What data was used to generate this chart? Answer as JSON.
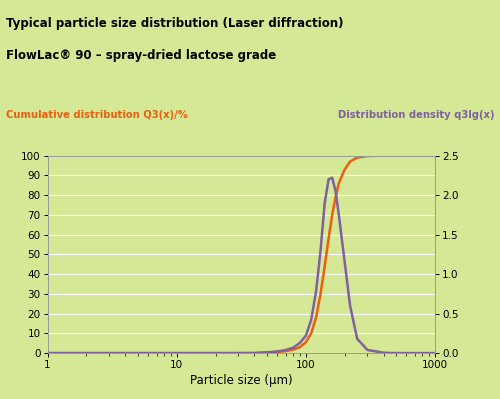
{
  "title_line1": "Typical particle size distribution (Laser diffraction)",
  "title_line2": "FlowLac® 90 – spray-dried lactose grade",
  "left_label": "Cumulative distribution Q3(x)/%",
  "right_label": "Distribution density q3lg(x)",
  "xlabel": "Particle size (µm)",
  "background_color": "#d4e896",
  "plot_bg_color": "#d4e896",
  "title_bg_color": "#cce08a",
  "orange_color": "#e86010",
  "purple_color": "#8060a0",
  "left_ylim": [
    0,
    100
  ],
  "right_ylim": [
    0,
    2.5
  ],
  "xlim": [
    1,
    1000
  ],
  "left_yticks": [
    0,
    10,
    20,
    30,
    40,
    50,
    60,
    70,
    80,
    90,
    100
  ],
  "right_yticks": [
    0,
    0.5,
    1.0,
    1.5,
    2.0,
    2.5
  ],
  "grid_color": "#ffffff",
  "cumulative_x": [
    1,
    2,
    5,
    10,
    20,
    30,
    40,
    50,
    60,
    70,
    80,
    90,
    100,
    110,
    120,
    130,
    140,
    150,
    160,
    170,
    180,
    200,
    220,
    250,
    300,
    400,
    500,
    700,
    1000
  ],
  "cumulative_y": [
    0,
    0,
    0,
    0,
    0,
    0,
    0.1,
    0.3,
    0.6,
    1.0,
    1.8,
    3.0,
    5.5,
    10,
    18,
    30,
    44,
    58,
    70,
    79,
    86,
    93,
    97,
    99,
    99.8,
    100,
    100,
    100,
    100
  ],
  "density_x": [
    1,
    5,
    10,
    20,
    30,
    40,
    50,
    60,
    70,
    80,
    90,
    100,
    110,
    120,
    130,
    140,
    150,
    160,
    170,
    180,
    200,
    220,
    250,
    300,
    400,
    500,
    700,
    1000
  ],
  "density_y": [
    0,
    0,
    0,
    0,
    0,
    0,
    0.01,
    0.02,
    0.04,
    0.07,
    0.13,
    0.22,
    0.42,
    0.78,
    1.3,
    1.9,
    2.2,
    2.22,
    2.05,
    1.75,
    1.15,
    0.6,
    0.18,
    0.04,
    0.005,
    0,
    0,
    0
  ]
}
